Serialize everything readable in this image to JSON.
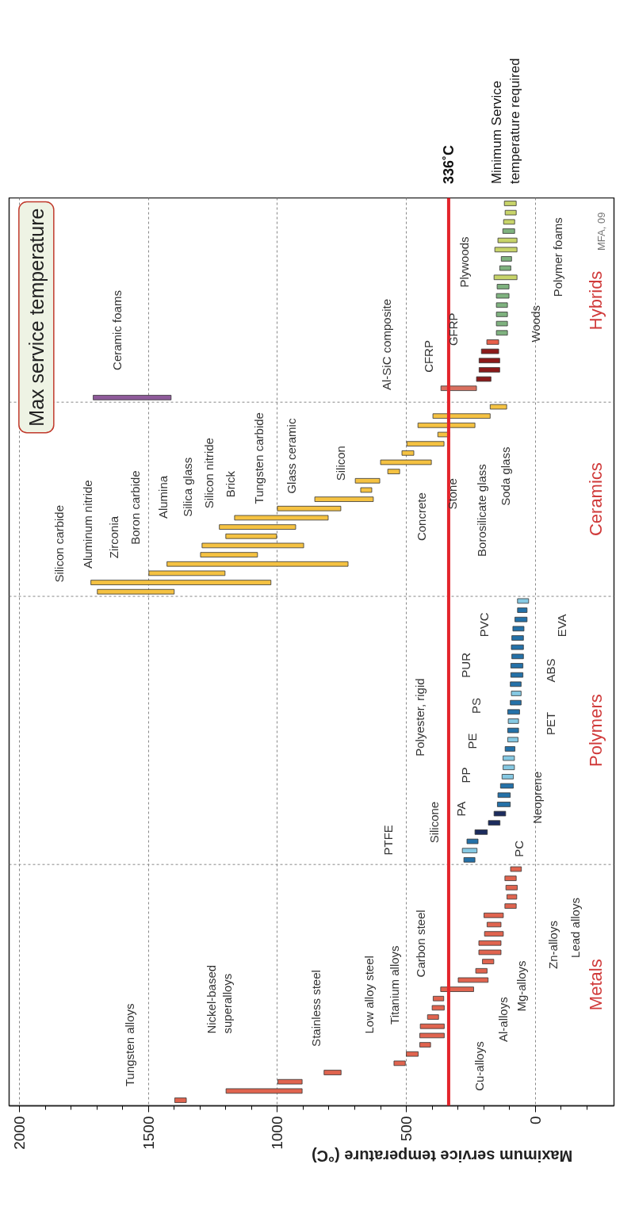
{
  "chart_data": {
    "type": "bar",
    "orientation": "horizontal",
    "title": "Max service temperature",
    "xlabel": "Maximum service temperature (°C)",
    "categories": [
      null,
      null,
      null,
      null,
      null,
      null,
      null,
      null,
      null,
      null,
      null,
      null,
      null,
      null,
      null,
      null,
      null,
      null,
      null,
      null,
      null,
      null,
      null,
      null,
      null,
      null,
      null,
      null,
      null,
      null,
      null,
      null,
      null,
      null,
      null,
      null,
      null,
      null,
      null,
      null,
      null,
      null,
      null,
      null,
      null,
      null,
      null,
      null,
      null,
      null,
      null,
      null,
      null,
      null,
      null,
      null,
      null,
      null,
      null,
      null,
      null,
      null,
      null,
      null,
      null,
      null,
      null,
      null,
      null,
      null,
      null,
      null,
      null,
      null,
      null,
      null,
      null,
      null,
      null,
      null,
      null,
      null,
      null,
      null,
      null,
      null,
      null,
      null,
      null,
      null,
      null,
      null,
      null,
      null,
      null,
      null,
      null,
      null
    ],
    "xlim": [
      2040,
      -305
    ],
    "xticks": [
      0,
      500,
      1000,
      1500,
      2000,
      {
        "value": -200,
        "label": null
      },
      {
        "value": -100,
        "label": null
      },
      {
        "value": 100,
        "label": null
      },
      {
        "value": 200,
        "label": null
      },
      {
        "value": 300,
        "label": null
      },
      {
        "value": 400,
        "label": null
      },
      {
        "value": 600,
        "label": null
      },
      {
        "value": 700,
        "label": null
      },
      {
        "value": 800,
        "label": null
      },
      {
        "value": 900,
        "label": null
      },
      {
        "value": 1100,
        "label": null
      },
      {
        "value": 1200,
        "label": null
      },
      {
        "value": 1300,
        "label": null
      },
      {
        "value": 1400,
        "label": null
      },
      {
        "value": 1600,
        "label": null
      },
      {
        "value": 1700,
        "label": null
      },
      {
        "value": 1800,
        "label": null
      },
      {
        "value": 1900,
        "label": null
      }
    ],
    "tick_labels": "x",
    "grid": true,
    "series": [
      {
        "name": "Hybrids",
        "values": [
          46,
          43,
          43,
          46,
          74,
          86,
          40,
          43,
          89,
          46,
          49,
          43,
          43,
          43,
          43,
          46,
          67,
          80,
          80,
          56,
          138,
          302,
          null,
          null,
          null,
          null,
          null,
          null,
          null,
          null,
          null,
          null,
          null,
          null,
          null,
          null,
          null,
          null,
          null,
          null,
          null,
          null,
          null,
          null,
          null,
          null,
          null,
          null,
          null,
          null,
          null,
          null,
          null,
          null,
          null,
          null,
          null,
          null,
          null,
          null,
          null,
          null,
          null,
          null,
          null,
          null,
          null,
          null,
          null,
          null,
          null,
          null,
          null,
          null,
          null,
          null,
          null,
          null,
          null,
          null,
          null,
          null,
          null,
          null,
          null,
          null,
          null,
          null,
          null,
          null,
          null,
          null,
          null,
          null,
          null,
          null,
          null,
          null
        ],
        "base": [
          74,
          74,
          80,
          80,
          71,
          71,
          92,
          95,
          71,
          102,
          102,
          108,
          108,
          108,
          108,
          142,
          142,
          138,
          138,
          172,
          228,
          1412,
          null,
          null,
          null,
          null,
          null,
          null,
          null,
          null,
          null,
          null,
          null,
          null,
          null,
          null,
          null,
          null,
          null,
          null,
          null,
          null,
          null,
          null,
          null,
          null,
          null,
          null,
          null,
          null,
          null,
          null,
          null,
          null,
          null,
          null,
          null,
          null,
          null,
          null,
          null,
          null,
          null,
          null,
          null,
          null,
          null,
          null,
          null,
          null,
          null,
          null,
          null,
          null,
          null,
          null,
          null,
          null,
          null,
          null,
          null,
          null,
          null,
          null,
          null,
          null,
          null,
          null,
          null,
          null,
          null,
          null,
          null,
          null,
          null,
          null,
          null,
          null
        ],
        "colors": [
          "#c8d46a",
          "#c8d46a",
          "#c8d46a",
          "#7fb27f",
          "#c8d46a",
          "#c8d46a",
          "#7fb27f",
          "#7fb27f",
          "#c8d46a",
          "#7fb27f",
          "#7fb27f",
          "#7fb27f",
          "#7fb27f",
          "#7fb27f",
          "#7fb27f",
          "#e8604a",
          "#8b1a1a",
          "#8b1a1a",
          "#8b1a1a",
          "#8b1a1a",
          "#d9705f",
          "#8e5a9a",
          null,
          null,
          null,
          null,
          null,
          null,
          null,
          null,
          null,
          null,
          null,
          null,
          null,
          null,
          null,
          null,
          null,
          null,
          null,
          null,
          null,
          null,
          null,
          null,
          null,
          null,
          null,
          null,
          null,
          null,
          null,
          null,
          null,
          null,
          null,
          null,
          null,
          null,
          null,
          null,
          null,
          null,
          null,
          null,
          null,
          null,
          null,
          null,
          null,
          null,
          null,
          null,
          null,
          null,
          null,
          null,
          null,
          null,
          null,
          null,
          null,
          null,
          null,
          null,
          null,
          null,
          null,
          null,
          null,
          null,
          null,
          null,
          null,
          null,
          null,
          null
        ]
      },
      {
        "name": "Ceramics",
        "color": "#f5c242",
        "values": [
          null,
          null,
          null,
          null,
          null,
          null,
          null,
          null,
          null,
          null,
          null,
          null,
          null,
          null,
          null,
          null,
          null,
          null,
          null,
          null,
          null,
          null,
          64,
          222,
          221,
          46,
          144,
          46,
          197,
          46,
          95,
          43,
          227,
          246,
          363,
          296,
          197,
          394,
          221,
          702,
          295,
          698,
          298,
          null,
          null,
          null,
          null,
          null,
          null,
          null,
          null,
          null,
          null,
          null,
          null,
          null,
          null,
          null,
          null,
          null,
          null,
          null,
          null,
          null,
          null,
          null,
          null,
          null,
          null,
          null,
          null,
          null,
          null,
          null,
          null,
          null,
          null,
          null,
          null,
          null,
          null,
          null,
          null,
          null,
          null,
          null,
          null,
          null,
          null,
          null,
          null,
          null,
          null,
          null,
          null,
          null,
          null,
          null
        ],
        "base": [
          null,
          null,
          null,
          null,
          null,
          null,
          null,
          null,
          null,
          null,
          null,
          null,
          null,
          null,
          null,
          null,
          null,
          null,
          null,
          null,
          null,
          null,
          111,
          175,
          234,
          332,
          354,
          471,
          403,
          526,
          603,
          634,
          628,
          754,
          803,
          929,
          1003,
          898,
          1077,
          726,
          1203,
          1025,
          1400,
          null,
          null,
          null,
          null,
          null,
          null,
          null,
          null,
          null,
          null,
          null,
          null,
          null,
          null,
          null,
          null,
          null,
          null,
          null,
          null,
          null,
          null,
          null,
          null,
          null,
          null,
          null,
          null,
          null,
          null,
          null,
          null,
          null,
          null,
          null,
          null,
          null,
          null,
          null,
          null,
          null,
          null,
          null,
          null,
          null,
          null,
          null,
          null,
          null,
          null,
          null,
          null,
          null,
          null,
          null
        ]
      },
      {
        "name": "Polymers",
        "values": [
          null,
          null,
          null,
          null,
          null,
          null,
          null,
          null,
          null,
          null,
          null,
          null,
          null,
          null,
          null,
          null,
          null,
          null,
          null,
          null,
          null,
          null,
          null,
          null,
          null,
          null,
          null,
          null,
          null,
          null,
          null,
          null,
          null,
          null,
          null,
          null,
          null,
          null,
          null,
          null,
          null,
          null,
          null,
          43,
          37,
          47,
          43,
          45,
          47,
          45,
          47,
          47,
          42,
          38,
          42,
          46,
          40,
          42,
          40,
          38,
          44,
          44,
          44,
          50,
          48,
          50,
          45,
          45,
          48,
          43,
          57,
          43,
          null,
          null,
          null,
          null,
          null,
          null,
          null,
          null,
          null,
          null,
          null,
          null,
          null,
          null,
          null,
          null,
          null,
          null,
          null,
          null,
          null,
          null,
          null,
          null,
          null,
          null
        ],
        "base": [
          null,
          null,
          null,
          null,
          null,
          null,
          null,
          null,
          null,
          null,
          null,
          null,
          null,
          null,
          null,
          null,
          null,
          null,
          null,
          null,
          null,
          null,
          null,
          null,
          null,
          null,
          null,
          null,
          null,
          null,
          null,
          null,
          null,
          null,
          null,
          null,
          null,
          null,
          null,
          null,
          null,
          null,
          null,
          26,
          32,
          32,
          44,
          46,
          46,
          46,
          48,
          48,
          55,
          55,
          55,
          61,
          65,
          65,
          67,
          79,
          81,
          81,
          85,
          85,
          97,
          97,
          115,
          137,
          186,
          222,
          226,
          234,
          null,
          null,
          null,
          null,
          null,
          null,
          null,
          null,
          null,
          null,
          null,
          null,
          null,
          null,
          null,
          null,
          null,
          null,
          null,
          null,
          null,
          null,
          null,
          null,
          null,
          null
        ],
        "colors": [
          null,
          null,
          null,
          null,
          null,
          null,
          null,
          null,
          null,
          null,
          null,
          null,
          null,
          null,
          null,
          null,
          null,
          null,
          null,
          null,
          null,
          null,
          null,
          null,
          null,
          null,
          null,
          null,
          null,
          null,
          null,
          null,
          null,
          null,
          null,
          null,
          null,
          null,
          null,
          null,
          null,
          null,
          null,
          "#86c9e3",
          "#2471a8",
          "#2471a8",
          "#2471a8",
          "#2471a8",
          "#2471a8",
          "#2471a8",
          "#2471a8",
          "#2471a8",
          "#2471a8",
          "#86c9e3",
          "#2471a8",
          "#2471a8",
          "#86c9e3",
          "#2471a8",
          "#86c9e3",
          "#2471a8",
          "#86c9e3",
          "#86c9e3",
          "#86c9e3",
          "#2471a8",
          "#2471a8",
          "#2471a8",
          "#1c2c5e",
          "#1c2c5e",
          "#1c2c5e",
          "#2471a8",
          "#86c9e3",
          "#2471a8",
          null,
          null,
          null,
          null,
          null,
          null,
          null,
          null,
          null,
          null,
          null,
          null,
          null,
          null,
          null,
          null,
          null,
          null,
          null,
          null,
          null,
          null,
          null,
          null,
          null,
          null
        ]
      },
      {
        "name": "Metals",
        "color": "#e0644f",
        "values": [
          null,
          null,
          null,
          null,
          null,
          null,
          null,
          null,
          null,
          null,
          null,
          null,
          null,
          null,
          null,
          null,
          null,
          null,
          null,
          null,
          null,
          null,
          null,
          null,
          null,
          null,
          null,
          null,
          null,
          null,
          null,
          null,
          null,
          null,
          null,
          null,
          null,
          null,
          null,
          null,
          null,
          null,
          null,
          null,
          null,
          null,
          null,
          null,
          null,
          null,
          null,
          null,
          null,
          null,
          null,
          null,
          null,
          null,
          null,
          null,
          null,
          null,
          null,
          null,
          null,
          null,
          null,
          null,
          null,
          null,
          null,
          null,
          42,
          44,
          44,
          38,
          44,
          75,
          54,
          73,
          86,
          86,
          44,
          44,
          116,
          128,
          41,
          47,
          43,
          93,
          95,
          42,
          46,
          44,
          66,
          94,
          295,
          45
        ],
        "base": [
          null,
          null,
          null,
          null,
          null,
          null,
          null,
          null,
          null,
          null,
          null,
          null,
          null,
          null,
          null,
          null,
          null,
          null,
          null,
          null,
          null,
          null,
          null,
          null,
          null,
          null,
          null,
          null,
          null,
          null,
          null,
          null,
          null,
          null,
          null,
          null,
          null,
          null,
          null,
          null,
          null,
          null,
          null,
          null,
          null,
          null,
          null,
          null,
          null,
          null,
          null,
          null,
          null,
          null,
          null,
          null,
          null,
          null,
          null,
          null,
          null,
          null,
          null,
          null,
          null,
          null,
          null,
          null,
          null,
          null,
          null,
          null,
          54,
          74,
          70,
          72,
          74,
          124,
          133,
          124,
          133,
          133,
          161,
          187,
          183,
          239,
          355,
          353,
          375,
          353,
          353,
          406,
          454,
          504,
          753,
          904,
          904,
          1353
        ]
      }
    ],
    "ref_lines": [
      {
        "axis": "x",
        "value": 336,
        "label": "336˚C",
        "color": "#e3242b"
      }
    ],
    "annotations": [
      "Minimum Service temperature required",
      "MFA, 09",
      "Ceramic foams",
      "Al-SiC composite",
      "CFRP",
      "GFRP",
      "Plywoods",
      "Woods",
      "Polymer foams",
      "Silicon carbide",
      "Aluminum nitride",
      "Zirconia",
      "Boron carbide",
      "Alumina",
      "Silica glass",
      "Silicon nitride",
      "Brick",
      "Tungsten carbide",
      "Glass ceramic",
      "Silicon",
      "Concrete",
      "Stone",
      "Borosilicate glass",
      "Soda glass",
      "Polyester, rigid",
      "PUR",
      "PVC",
      "PS",
      "PE",
      "PP",
      "PA",
      "Silicone",
      "PTFE",
      "PC",
      "Neoprene",
      "PET",
      "ABS",
      "EVA",
      "Tungsten alloys",
      "Nickel-based superalloys",
      "Stainless steel",
      "Low alloy steel",
      "Titanium alloys",
      "Carbon steel",
      "Cu-alloys",
      "Al-alloys",
      "Mg-alloys",
      "Zn-alloys",
      "Lead alloys"
    ]
  }
}
